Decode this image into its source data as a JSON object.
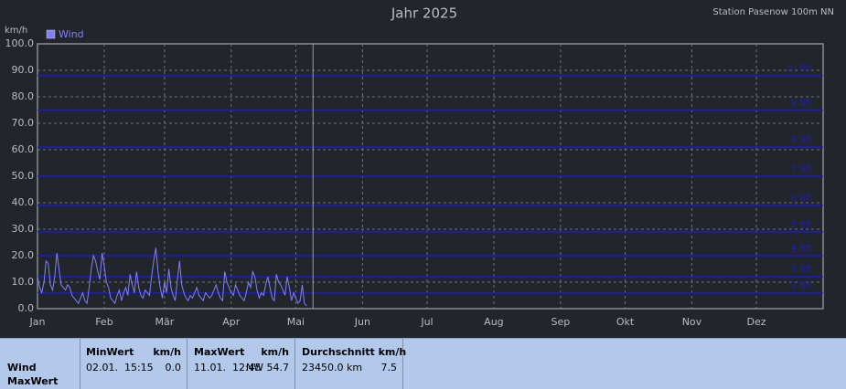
{
  "chart_data": {
    "type": "line",
    "title": "Jahr 2025",
    "subtitle": "Station Pasenow 100m NN",
    "y_label": "km/h",
    "xlim": [
      0,
      365
    ],
    "xticks": [
      {
        "value": 0,
        "label": "Jan"
      },
      {
        "value": 31,
        "label": "Feb"
      },
      {
        "value": 59,
        "label": "Mär"
      },
      {
        "value": 90,
        "label": "Apr"
      },
      {
        "value": 120,
        "label": "Mai"
      },
      {
        "value": 151,
        "label": "Jun"
      },
      {
        "value": 181,
        "label": "Jul"
      },
      {
        "value": 212,
        "label": "Aug"
      },
      {
        "value": 243,
        "label": "Sep"
      },
      {
        "value": 273,
        "label": "Okt"
      },
      {
        "value": 304,
        "label": "Nov"
      },
      {
        "value": 334,
        "label": "Dez"
      }
    ],
    "ylim": [
      0,
      100
    ],
    "yticks": [
      {
        "value": 0,
        "label": "0.0"
      },
      {
        "value": 10,
        "label": "10.0"
      },
      {
        "value": 20,
        "label": "20.0"
      },
      {
        "value": 30,
        "label": "30.0"
      },
      {
        "value": 40,
        "label": "40.0"
      },
      {
        "value": 50,
        "label": "50.0"
      },
      {
        "value": 60,
        "label": "60.0"
      },
      {
        "value": 70,
        "label": "70.0"
      },
      {
        "value": 80,
        "label": "80.0"
      },
      {
        "value": 90,
        "label": "90.0"
      },
      {
        "value": 100,
        "label": "100.0"
      }
    ],
    "grid": true,
    "reference_lines": [
      {
        "value": 88,
        "label": "10 Bft"
      },
      {
        "value": 75,
        "label": "9 Bft"
      },
      {
        "value": 61,
        "label": "8 Bft"
      },
      {
        "value": 50,
        "label": "7 Bft"
      },
      {
        "value": 39,
        "label": "6 Bft"
      },
      {
        "value": 29,
        "label": "5 Bft"
      },
      {
        "value": 20,
        "label": "4 Bft"
      },
      {
        "value": 12,
        "label": "3 Bft"
      },
      {
        "value": 6,
        "label": "2 Bft"
      }
    ],
    "reference_color": "#1a1ad0",
    "current_marker": 128,
    "legend": "top-left",
    "series": [
      {
        "name": "Wind",
        "color": "#8080ff",
        "values": [
          12,
          8,
          6,
          10,
          18,
          17,
          9,
          7,
          12,
          21,
          15,
          9,
          8,
          7,
          9,
          8,
          5,
          4,
          3,
          2,
          4,
          6,
          3,
          2,
          8,
          15,
          20,
          18,
          14,
          11,
          21,
          16,
          10,
          8,
          4,
          3,
          2,
          5,
          7,
          3,
          6,
          8,
          5,
          13,
          9,
          6,
          14,
          8,
          5,
          4,
          7,
          6,
          5,
          12,
          18,
          23,
          14,
          8,
          4,
          10,
          6,
          15,
          8,
          5,
          3,
          11,
          18,
          9,
          6,
          4,
          3,
          5,
          4,
          6,
          8,
          5,
          4,
          3,
          6,
          5,
          4,
          5,
          7,
          9,
          6,
          4,
          3,
          14,
          10,
          8,
          6,
          5,
          9,
          7,
          5,
          4,
          3,
          6,
          10,
          8,
          14,
          12,
          7,
          4,
          6,
          5,
          9,
          12,
          8,
          4,
          3,
          13,
          10,
          9,
          7,
          5,
          12,
          8,
          3,
          6,
          4,
          2,
          3,
          9,
          2,
          1
        ]
      }
    ]
  },
  "table": {
    "row_labels": [
      "Wind",
      "MaxWert"
    ],
    "columns": [
      {
        "head": "MinWert",
        "unit": "km/h",
        "time": "02.01.  15:15",
        "value": "0.0"
      },
      {
        "head": "MaxWert",
        "unit": "km/h",
        "time": "11.01.  12:45",
        "value": "NW 54.7"
      },
      {
        "head": "Durchschnitt km/h",
        "time": "23450.0 km",
        "value": "7.5"
      }
    ]
  }
}
